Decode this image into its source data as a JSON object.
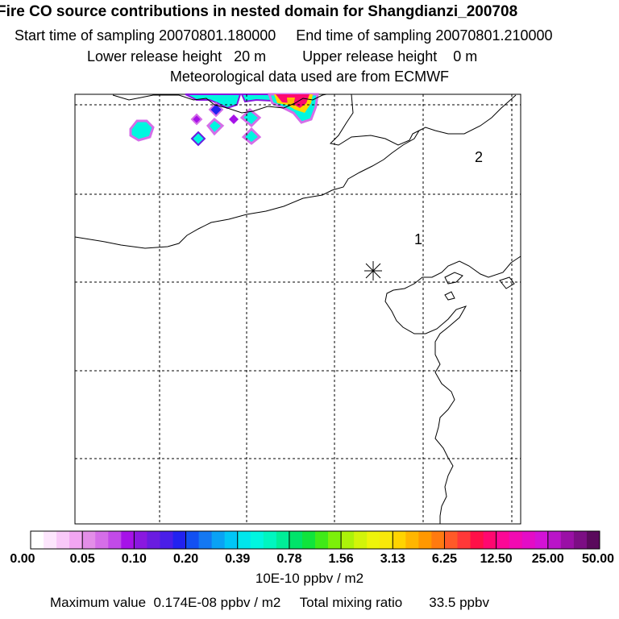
{
  "header": {
    "title": "Fire CO source contributions in nested domain for Shangdianzi_200708",
    "start_label": "Start time of sampling",
    "start_value": "20070801.180000",
    "end_label": "End time of sampling",
    "end_value": "20070801.210000",
    "lower_label": "Lower release height",
    "lower_value": "20 m",
    "upper_label": "Upper release height",
    "upper_value": "0 m",
    "met_note": "Meteorological data used are from ECMWF"
  },
  "chart_data": {
    "type": "heatmap",
    "title": "Fire CO source contributions in nested domain for Shangdianzi_200708",
    "map_labels": [
      "1",
      "2"
    ],
    "receptor_marker": "asterisk",
    "colorbar": {
      "tick_labels": [
        "0.00",
        "0.05",
        "0.10",
        "0.20",
        "0.39",
        "0.78",
        "1.56",
        "3.13",
        "6.25",
        "12.50",
        "25.00",
        "50.00"
      ],
      "unit": "10E-10 ppbv / m2",
      "colors": [
        "#ffffff",
        "#fde6fd",
        "#f9c9f9",
        "#f2a6f2",
        "#e38ee8",
        "#d56ee8",
        "#c24ae8",
        "#a612e8",
        "#8a18e0",
        "#6a1ce0",
        "#4a1ee8",
        "#2222f0",
        "#1250f2",
        "#1478f2",
        "#0aa2f4",
        "#00c6f6",
        "#00e6ec",
        "#00f6e0",
        "#00f6c0",
        "#00ee98",
        "#00e46a",
        "#10e43c",
        "#40ea18",
        "#7cf00a",
        "#acf20a",
        "#d2f40a",
        "#eef40a",
        "#f8e80a",
        "#ffd400",
        "#ffb600",
        "#ff9800",
        "#ff7a10",
        "#ff5a28",
        "#ff3838",
        "#ff1048",
        "#ff0870",
        "#fc0896",
        "#f20ab2",
        "#e40cc6",
        "#d412d6",
        "#ba14c8",
        "#9a10a6",
        "#7c0e84",
        "#5a0a5c"
      ]
    },
    "plumes": [
      {
        "region": "north-coast",
        "level": "6.25-50.00",
        "color": "#ff0870"
      },
      {
        "region": "north-coast",
        "level": "0.39-1.56",
        "color": "#00f6e0"
      },
      {
        "region": "north-coast",
        "level": "0.10-0.20",
        "color": "#8a18e0"
      },
      {
        "region": "north-coast",
        "level": "0.05-0.10",
        "color": "#d56ee8"
      }
    ]
  },
  "footer": {
    "max_label": "Maximum value",
    "max_value": "0.174E-08 ppbv / m2",
    "total_label": "Total mixing ratio",
    "total_value": "33.5 ppbv"
  }
}
